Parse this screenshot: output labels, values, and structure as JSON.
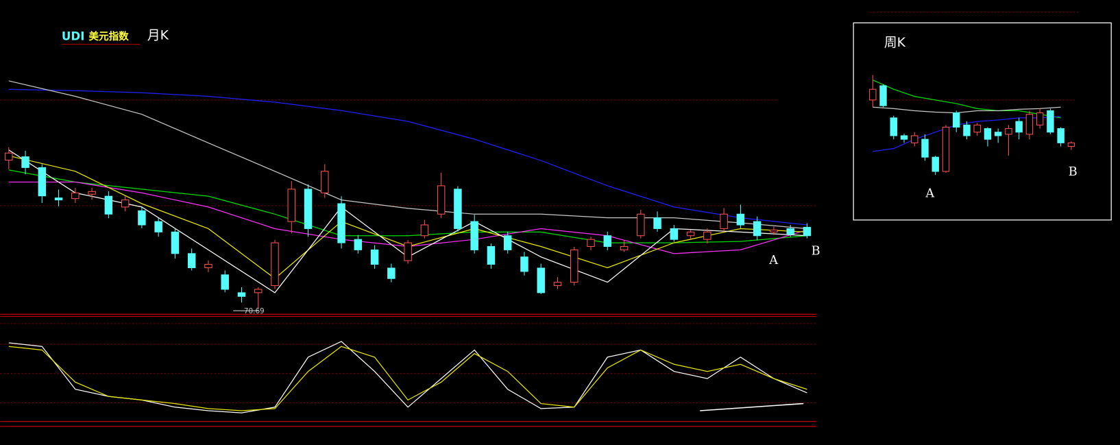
{
  "chart_data": [
    {
      "type": "candlestick",
      "title": "UDI",
      "subtitle": "美元指数",
      "period": "月K",
      "up_color": "#ff5050",
      "down_color": "#54fcfc",
      "xlim": [
        0,
        48
      ],
      "ylim": [
        69,
        141
      ],
      "open": [
        114.7,
        115.7,
        112.5,
        103.5,
        103.3,
        104.6,
        104.0,
        100.8,
        99.7,
        96.5,
        93.4,
        87.0,
        82.8,
        80.7,
        75.4,
        75.4,
        77.5,
        96.5,
        106.1,
        105.0,
        101.8,
        91.2,
        88.1,
        82.7,
        84.9,
        92.3,
        98.7,
        106.1,
        96.5,
        89.1,
        92.3,
        86.0,
        82.7,
        77.5,
        78.5,
        89.1,
        92.3,
        88.1,
        92.3,
        97.6,
        94.4,
        92.3,
        91.2,
        94.4,
        98.7,
        96.5,
        93.4,
        94.4,
        94.8
      ],
      "high": [
        118.5,
        117.5,
        113.5,
        106.0,
        106.5,
        106.5,
        105.5,
        104.0,
        101.0,
        97.5,
        94.5,
        88.5,
        85.0,
        82.0,
        77.0,
        77.0,
        91.0,
        108.5,
        107.5,
        113.5,
        104.0,
        92.5,
        89.5,
        84.0,
        91.0,
        97.0,
        111.0,
        107.0,
        98.5,
        90.0,
        93.5,
        87.5,
        84.0,
        80.0,
        89.0,
        92.0,
        93.5,
        91.0,
        100.0,
        99.5,
        95.5,
        94.0,
        94.5,
        100.5,
        101.5,
        98.0,
        95.0,
        95.5,
        96.0
      ],
      "low": [
        112.0,
        110.5,
        102.0,
        101.0,
        102.0,
        103.0,
        97.5,
        99.5,
        94.5,
        92.0,
        85.5,
        82.0,
        81.5,
        75.5,
        72.5,
        70.69,
        76.5,
        93.0,
        92.0,
        103.5,
        88.5,
        87.0,
        82.5,
        78.5,
        84.0,
        91.5,
        97.5,
        93.5,
        87.0,
        82.5,
        87.0,
        80.5,
        75.0,
        76.5,
        77.5,
        88.0,
        88.0,
        87.5,
        91.5,
        93.5,
        90.5,
        91.0,
        90.0,
        93.5,
        94.5,
        91.0,
        92.5,
        92.0,
        91.5
      ],
      "close": [
        116.8,
        112.5,
        104.1,
        102.9,
        105.0,
        105.4,
        98.7,
        102.9,
        95.5,
        93.4,
        87.0,
        82.8,
        83.8,
        76.4,
        74.3,
        76.4,
        90.2,
        106.1,
        94.4,
        111.4,
        90.2,
        88.1,
        83.8,
        79.6,
        90.2,
        95.5,
        107.1,
        94.4,
        88.1,
        83.8,
        88.1,
        81.7,
        75.4,
        78.5,
        88.1,
        91.2,
        89.1,
        89.1,
        98.7,
        94.4,
        91.2,
        93.4,
        93.4,
        98.7,
        95.5,
        92.3,
        94.0,
        92.7,
        92.3
      ],
      "low_value": 70.69,
      "annotations": [
        "A",
        "B"
      ],
      "series": [
        {
          "color": "#2020ff",
          "x": [
            0,
            4,
            8,
            12,
            16,
            20,
            24,
            28,
            32,
            36,
            40,
            44,
            48
          ],
          "values": [
            135.7,
            135.3,
            134.7,
            133.6,
            131.9,
            129.4,
            126.2,
            120.9,
            114.6,
            107.1,
            100.8,
            97.6,
            95.5
          ]
        },
        {
          "color": "#c8c8c8",
          "x": [
            0,
            4,
            8,
            12,
            16,
            20,
            24,
            28,
            32,
            36,
            40,
            44,
            48
          ],
          "values": [
            138.2,
            133.6,
            128.3,
            119.8,
            111.4,
            102.9,
            100.4,
            98.7,
            98.7,
            97.6,
            97.6,
            96.1,
            94.4
          ]
        },
        {
          "color": "#00e000",
          "x": [
            0,
            4,
            8,
            12,
            16,
            20,
            24,
            28,
            32,
            36,
            40,
            44,
            48
          ],
          "values": [
            111.8,
            108.2,
            106.1,
            104.0,
            98.7,
            92.3,
            92.3,
            93.4,
            93.4,
            90.2,
            90.2,
            90.6,
            92.3
          ]
        },
        {
          "color": "#ff30ff",
          "x": [
            0,
            4,
            8,
            12,
            16,
            20,
            24,
            28,
            32,
            36,
            40,
            44,
            48
          ],
          "values": [
            108.2,
            108.2,
            105.0,
            100.8,
            94.4,
            91.2,
            89.1,
            91.2,
            94.4,
            92.3,
            87.0,
            88.1,
            94.0
          ]
        },
        {
          "color": "#e8e800",
          "x": [
            0,
            4,
            8,
            12,
            16,
            20,
            24,
            28,
            32,
            36,
            40,
            44,
            48
          ],
          "values": [
            116.0,
            111.4,
            101.8,
            94.4,
            79.6,
            96.5,
            89.1,
            94.4,
            89.1,
            82.8,
            90.2,
            94.4,
            93.4
          ]
        },
        {
          "color": "#ffffff",
          "x": [
            0,
            4,
            8,
            12,
            16,
            20,
            24,
            28,
            32,
            36,
            40,
            44,
            48
          ],
          "values": [
            117.7,
            105.0,
            100.8,
            88.1,
            75.4,
            100.8,
            86.0,
            96.5,
            86.0,
            78.5,
            94.4,
            93.4,
            92.3
          ]
        }
      ]
    },
    {
      "type": "line",
      "xlim": [
        0,
        48
      ],
      "ylim": [
        0,
        100
      ],
      "series": [
        {
          "color": "#ffffff",
          "x": [
            0,
            2,
            4,
            6,
            8,
            10,
            12,
            14,
            16,
            18,
            20,
            22,
            24,
            26,
            28,
            30,
            32,
            34,
            36,
            38,
            40,
            42,
            44,
            46,
            48
          ],
          "values": [
            91.7,
            87.5,
            37.5,
            29.2,
            25,
            16.7,
            12.5,
            10,
            16.7,
            75,
            93.3,
            58.3,
            16.7,
            50,
            83.3,
            37.5,
            15,
            16.7,
            75,
            83.3,
            58.3,
            50,
            75,
            50,
            33.3
          ]
        },
        {
          "color": "#e8e800",
          "x": [
            0,
            2,
            4,
            6,
            8,
            10,
            12,
            14,
            16,
            18,
            20,
            22,
            24,
            26,
            28,
            30,
            32,
            34,
            36,
            38,
            40,
            42,
            44,
            46,
            48
          ],
          "values": [
            87.5,
            83.3,
            45.8,
            29.2,
            25,
            20.8,
            15,
            12.5,
            15,
            58.3,
            87.5,
            75,
            25,
            45.8,
            79.2,
            58.3,
            20.8,
            16.7,
            62.5,
            83.3,
            66.7,
            58.3,
            66.7,
            50,
            37.5
          ]
        }
      ]
    },
    {
      "type": "candlestick",
      "title": "周K",
      "up_color": "#ff5050",
      "down_color": "#54fcfc",
      "xlim": [
        0,
        19
      ],
      "ylim": [
        0,
        150
      ],
      "open": [
        110,
        130,
        85,
        60,
        50,
        55,
        30,
        10,
        92,
        75,
        65,
        70,
        65,
        62,
        80,
        62,
        75,
        95,
        70,
        45
      ],
      "high": [
        145,
        132,
        88,
        63,
        65,
        62,
        32,
        75,
        95,
        80,
        78,
        72,
        70,
        75,
        85,
        95,
        98,
        98,
        72,
        52
      ],
      "low": [
        100,
        100,
        55,
        50,
        45,
        25,
        5,
        8,
        65,
        55,
        60,
        45,
        50,
        32,
        55,
        55,
        70,
        62,
        45,
        40
      ],
      "close": [
        125,
        102,
        60,
        55,
        60,
        30,
        10,
        72,
        72,
        60,
        75,
        55,
        60,
        70,
        65,
        90,
        92,
        65,
        50,
        50
      ],
      "annotations": [
        "A",
        "B"
      ],
      "series": [
        {
          "color": "#00e000",
          "x": [
            0,
            2,
            4,
            6,
            8,
            10,
            12,
            14,
            16,
            18
          ],
          "values": [
            138,
            125,
            115,
            110,
            105,
            98,
            95,
            95,
            90,
            85
          ]
        },
        {
          "color": "#c8c8c8",
          "x": [
            0,
            2,
            4,
            6,
            8,
            10,
            12,
            14,
            16,
            18
          ],
          "values": [
            100,
            98,
            95,
            93,
            92,
            95,
            95,
            97,
            98,
            100
          ]
        },
        {
          "color": "#2020ff",
          "x": [
            0,
            2,
            4,
            6,
            8,
            10,
            12,
            14,
            16,
            18
          ],
          "values": [
            38,
            42,
            55,
            65,
            75,
            80,
            82,
            85,
            85,
            87
          ]
        }
      ]
    }
  ]
}
